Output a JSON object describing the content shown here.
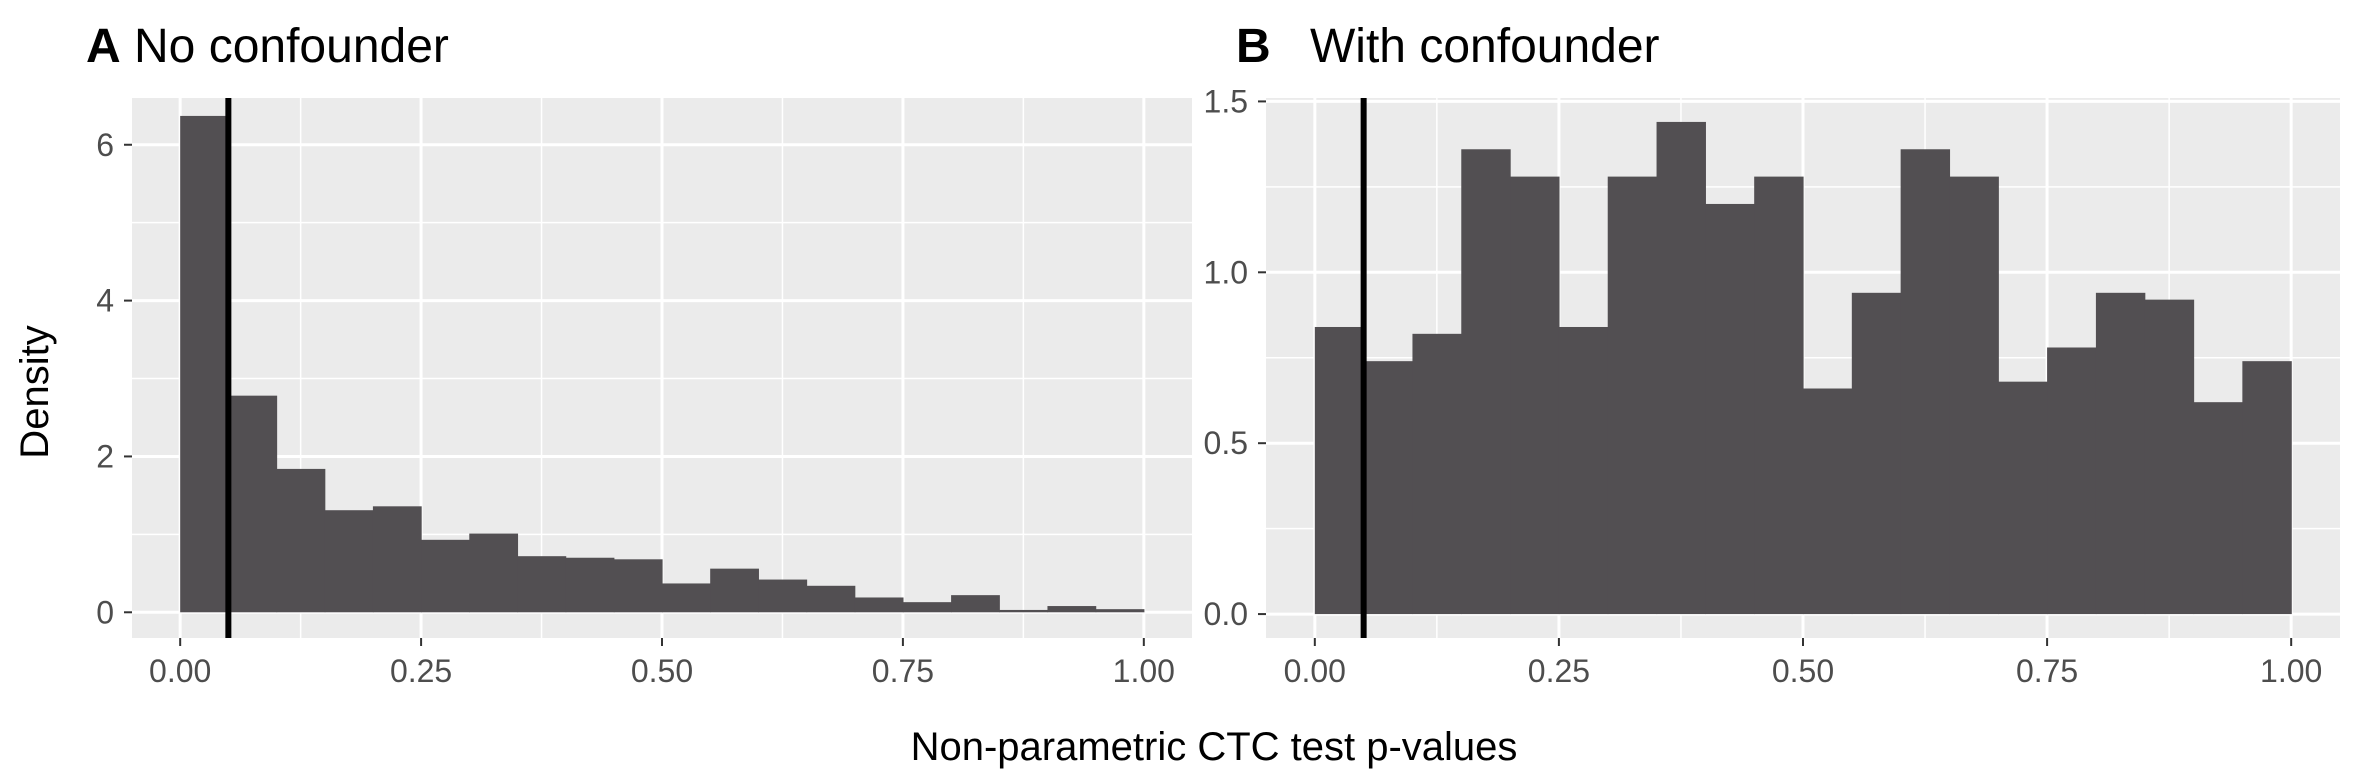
{
  "figure": {
    "ylabel": "Density",
    "xlabel": "Non-parametric CTC test p-values"
  },
  "chart_data": [
    {
      "type": "bar",
      "panel_tag": "A",
      "title": "No confounder",
      "xlim": [
        -0.05,
        1.05
      ],
      "ylim": [
        -0.33,
        6.6
      ],
      "x_ticks": [
        0.0,
        0.25,
        0.5,
        0.75,
        1.0
      ],
      "x_tick_labels": [
        "0.00",
        "0.25",
        "0.50",
        "0.75",
        "1.00"
      ],
      "y_ticks": [
        0,
        2,
        4,
        6
      ],
      "y_tick_labels": [
        "0",
        "2",
        "4",
        "6"
      ],
      "bin_width": 0.05,
      "bin_starts": [
        0.0,
        0.05,
        0.1,
        0.15,
        0.2,
        0.25,
        0.3,
        0.35,
        0.4,
        0.45,
        0.5,
        0.55,
        0.6,
        0.65,
        0.7,
        0.75,
        0.8,
        0.85,
        0.9,
        0.95
      ],
      "values": [
        6.37,
        2.78,
        1.84,
        1.31,
        1.36,
        0.93,
        1.01,
        0.72,
        0.7,
        0.68,
        0.37,
        0.56,
        0.42,
        0.34,
        0.19,
        0.13,
        0.22,
        0.03,
        0.08,
        0.04
      ],
      "vline": 0.05,
      "grid": true,
      "bar_color": "#524f52",
      "panel_background": "#ebebeb"
    },
    {
      "type": "bar",
      "panel_tag": "B",
      "title": "With confounder",
      "xlim": [
        -0.05,
        1.05
      ],
      "ylim": [
        -0.07,
        1.51
      ],
      "x_ticks": [
        0.0,
        0.25,
        0.5,
        0.75,
        1.0
      ],
      "x_tick_labels": [
        "0.00",
        "0.25",
        "0.50",
        "0.75",
        "1.00"
      ],
      "y_ticks": [
        0.0,
        0.5,
        1.0,
        1.5
      ],
      "y_tick_labels": [
        "0.0",
        "0.5",
        "1.0",
        "1.5"
      ],
      "bin_width": 0.05,
      "bin_starts": [
        0.0,
        0.05,
        0.1,
        0.15,
        0.2,
        0.25,
        0.3,
        0.35,
        0.4,
        0.45,
        0.5,
        0.55,
        0.6,
        0.65,
        0.7,
        0.75,
        0.8,
        0.85,
        0.9,
        0.95
      ],
      "values": [
        0.84,
        0.74,
        0.82,
        1.36,
        1.28,
        0.84,
        1.28,
        1.44,
        1.2,
        1.28,
        0.66,
        0.94,
        1.36,
        1.28,
        0.68,
        0.78,
        0.94,
        0.92,
        0.62,
        0.74
      ],
      "vline": 0.05,
      "grid": true,
      "bar_color": "#524f52",
      "panel_background": "#ebebeb"
    }
  ]
}
